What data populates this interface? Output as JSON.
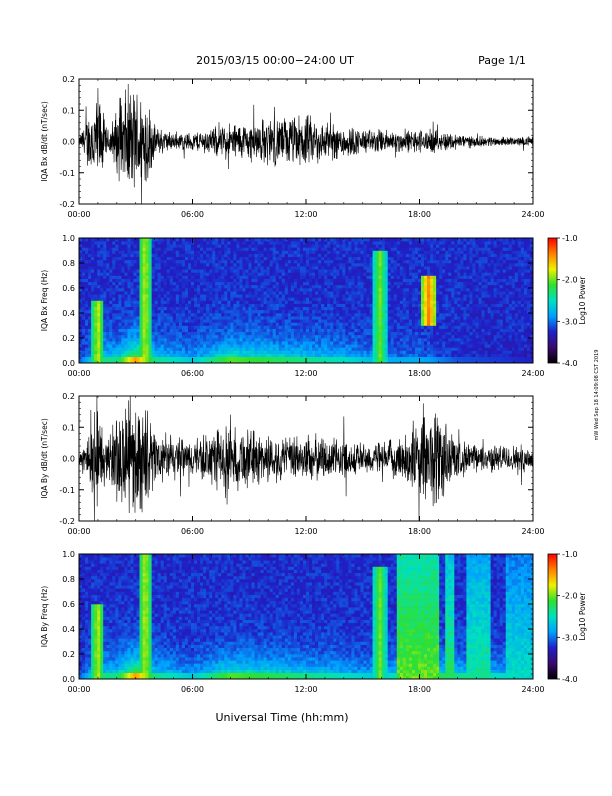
{
  "header": {
    "title": "2015/03/15  00:00−24:00 UT",
    "page_label": "Page 1/1"
  },
  "footer": {
    "xlabel": "Universal Time (hh:mm)",
    "side_note": "mW Wed Sep 18 14:09:08 CST 2019"
  },
  "colorbar": {
    "label": "Log10 Power",
    "ticks": [
      "-1.0",
      "-2.0",
      "-3.0",
      "-4.0"
    ],
    "range": [
      -4.0,
      -1.0
    ],
    "colors": [
      "#000000",
      "#3a0a6e",
      "#2020c8",
      "#00a0ff",
      "#00e0c0",
      "#30e030",
      "#f0f000",
      "#ff8000",
      "#ff0000"
    ]
  },
  "chart_data": [
    {
      "type": "line",
      "title": "",
      "ylabel": "IQA Bx dB/dt (nT/sec)",
      "xlabel": "",
      "x_ticks": [
        "00:00",
        "06:00",
        "12:00",
        "18:00",
        "24:00"
      ],
      "xlim": [
        0,
        24
      ],
      "y_ticks": [
        "0.2",
        "0.1",
        "0.0",
        "-0.1",
        "-0.2"
      ],
      "ylim": [
        -0.2,
        0.2
      ],
      "color": "#000000",
      "series": [
        {
          "x": [
            0,
            1,
            1.5,
            2,
            2.5,
            3,
            3.5,
            4,
            5,
            6,
            7,
            8,
            9,
            10,
            11,
            12,
            13,
            14,
            15,
            16,
            17,
            18,
            19,
            20,
            21,
            22,
            23,
            24
          ],
          "amplitude": [
            0.012,
            0.2,
            0.04,
            0.12,
            0.2,
            0.2,
            0.2,
            0.06,
            0.03,
            0.035,
            0.05,
            0.07,
            0.07,
            0.09,
            0.09,
            0.1,
            0.07,
            0.065,
            0.045,
            0.045,
            0.04,
            0.045,
            0.04,
            0.03,
            0.02,
            0.018,
            0.015,
            0.02
          ]
        }
      ]
    },
    {
      "type": "heatmap",
      "title": "",
      "ylabel": "IQA Bx Freq (Hz)",
      "xlabel": "",
      "x_ticks": [
        "00:00",
        "06:00",
        "12:00",
        "18:00",
        "24:00"
      ],
      "xlim": [
        0,
        24
      ],
      "y_ticks": [
        "1.0",
        "0.8",
        "0.6",
        "0.4",
        "0.2",
        "0.0"
      ],
      "ylim": [
        0,
        1
      ],
      "value_label": "Log10 Power",
      "zlim": [
        -4,
        -1
      ],
      "activity": [
        {
          "t": 0,
          "level": 0.2
        },
        {
          "t": 1,
          "level": 0.45
        },
        {
          "t": 2,
          "level": 0.45
        },
        {
          "t": 3,
          "level": 0.75
        },
        {
          "t": 4,
          "level": 0.45
        },
        {
          "t": 6,
          "level": 0.35
        },
        {
          "t": 8,
          "level": 0.55
        },
        {
          "t": 10,
          "level": 0.5
        },
        {
          "t": 12,
          "level": 0.45
        },
        {
          "t": 14,
          "level": 0.4
        },
        {
          "t": 16,
          "level": 0.3
        },
        {
          "t": 17,
          "level": 0.3
        },
        {
          "t": 18,
          "level": 0.3
        },
        {
          "t": 20,
          "level": 0.2
        },
        {
          "t": 24,
          "level": 0.15
        }
      ],
      "features": [
        {
          "t": 1.0,
          "fmin": 0.0,
          "fmax": 0.5,
          "level": 0.7
        },
        {
          "t": 3.5,
          "fmin": 0.0,
          "fmax": 1.0,
          "level": 0.7
        },
        {
          "t": 15.9,
          "fmin": 0.0,
          "fmax": 0.9,
          "level": 0.65
        },
        {
          "t": 18.5,
          "fmin": 0.3,
          "fmax": 0.7,
          "level": 0.85
        }
      ]
    },
    {
      "type": "line",
      "title": "",
      "ylabel": "IQA By dB/dt (nT/sec)",
      "xlabel": "",
      "x_ticks": [
        "00:00",
        "06:00",
        "12:00",
        "18:00",
        "24:00"
      ],
      "xlim": [
        0,
        24
      ],
      "y_ticks": [
        "0.2",
        "0.1",
        "0.0",
        "-0.1",
        "-0.2"
      ],
      "ylim": [
        -0.2,
        0.2
      ],
      "color": "#000000",
      "series": [
        {
          "x": [
            0,
            1,
            1.5,
            2,
            2.5,
            3,
            3.5,
            4,
            5,
            6,
            7,
            8,
            9,
            10,
            11,
            12,
            13,
            14,
            15,
            16,
            17,
            18,
            19,
            20,
            21,
            22,
            23,
            24
          ],
          "amplitude": [
            0.02,
            0.2,
            0.06,
            0.2,
            0.2,
            0.2,
            0.2,
            0.1,
            0.08,
            0.07,
            0.1,
            0.12,
            0.11,
            0.09,
            0.08,
            0.09,
            0.08,
            0.07,
            0.06,
            0.06,
            0.08,
            0.15,
            0.2,
            0.07,
            0.05,
            0.05,
            0.05,
            0.05
          ]
        }
      ]
    },
    {
      "type": "heatmap",
      "title": "",
      "ylabel": "IQA By Freq (Hz)",
      "xlabel": "",
      "x_ticks": [
        "00:00",
        "06:00",
        "12:00",
        "18:00",
        "24:00"
      ],
      "xlim": [
        0,
        24
      ],
      "y_ticks": [
        "1.0",
        "0.8",
        "0.6",
        "0.4",
        "0.2",
        "0.0"
      ],
      "ylim": [
        0,
        1
      ],
      "value_label": "Log10 Power",
      "zlim": [
        -4,
        -1
      ],
      "activity": [
        {
          "t": 0,
          "level": 0.2
        },
        {
          "t": 1,
          "level": 0.45
        },
        {
          "t": 2,
          "level": 0.45
        },
        {
          "t": 3,
          "level": 0.75
        },
        {
          "t": 4,
          "level": 0.45
        },
        {
          "t": 6,
          "level": 0.35
        },
        {
          "t": 8,
          "level": 0.55
        },
        {
          "t": 10,
          "level": 0.5
        },
        {
          "t": 12,
          "level": 0.45
        },
        {
          "t": 14,
          "level": 0.4
        },
        {
          "t": 16,
          "level": 0.35
        },
        {
          "t": 17,
          "level": 0.45
        },
        {
          "t": 18,
          "level": 0.55
        },
        {
          "t": 20,
          "level": 0.45
        },
        {
          "t": 24,
          "level": 0.35
        }
      ],
      "features": [
        {
          "t": 1.0,
          "fmin": 0.0,
          "fmax": 0.6,
          "level": 0.7
        },
        {
          "t": 3.5,
          "fmin": 0.0,
          "fmax": 1.0,
          "level": 0.7
        },
        {
          "t": 15.9,
          "fmin": 0.0,
          "fmax": 0.9,
          "level": 0.65
        }
      ],
      "bands": [
        {
          "t0": 16.8,
          "t1": 19.0,
          "level": 0.62
        },
        {
          "t0": 19.3,
          "t1": 19.8,
          "level": 0.55
        },
        {
          "t0": 20.5,
          "t1": 21.8,
          "level": 0.5
        },
        {
          "t0": 22.6,
          "t1": 24.0,
          "level": 0.45
        }
      ]
    }
  ]
}
